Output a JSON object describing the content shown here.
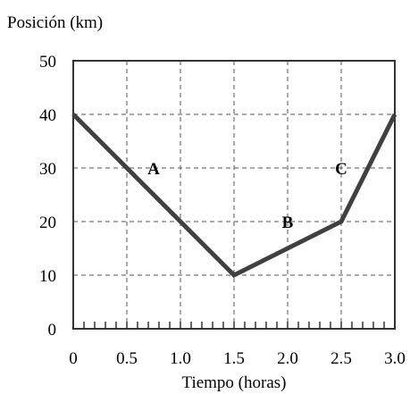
{
  "chart_data": {
    "type": "line",
    "ylabel": "Posición (km)",
    "xlabel": "Tiempo (horas)",
    "xlim": [
      0,
      3.0
    ],
    "ylim": [
      0,
      50
    ],
    "grid": true,
    "grid_style": "dashed",
    "x_ticks": [
      "0",
      "0.5",
      "1.0",
      "1.5",
      "2.0",
      "2.5",
      "3.0"
    ],
    "x_tick_values": [
      0,
      0.5,
      1.0,
      1.5,
      2.0,
      2.5,
      3.0
    ],
    "y_ticks": [
      "0",
      "10",
      "20",
      "30",
      "40",
      "50"
    ],
    "y_tick_values": [
      0,
      10,
      20,
      30,
      40,
      50
    ],
    "minor_x_tick_step": 0.1,
    "series": [
      {
        "x": [
          0,
          1.5,
          2.5,
          3.0
        ],
        "y": [
          40,
          10,
          20,
          40
        ],
        "color": "#404040"
      }
    ],
    "annotations": [
      {
        "text": "A",
        "x": 0.75,
        "y": 30
      },
      {
        "text": "B",
        "x": 2.0,
        "y": 20
      },
      {
        "text": "C",
        "x": 2.5,
        "y": 30
      }
    ]
  }
}
